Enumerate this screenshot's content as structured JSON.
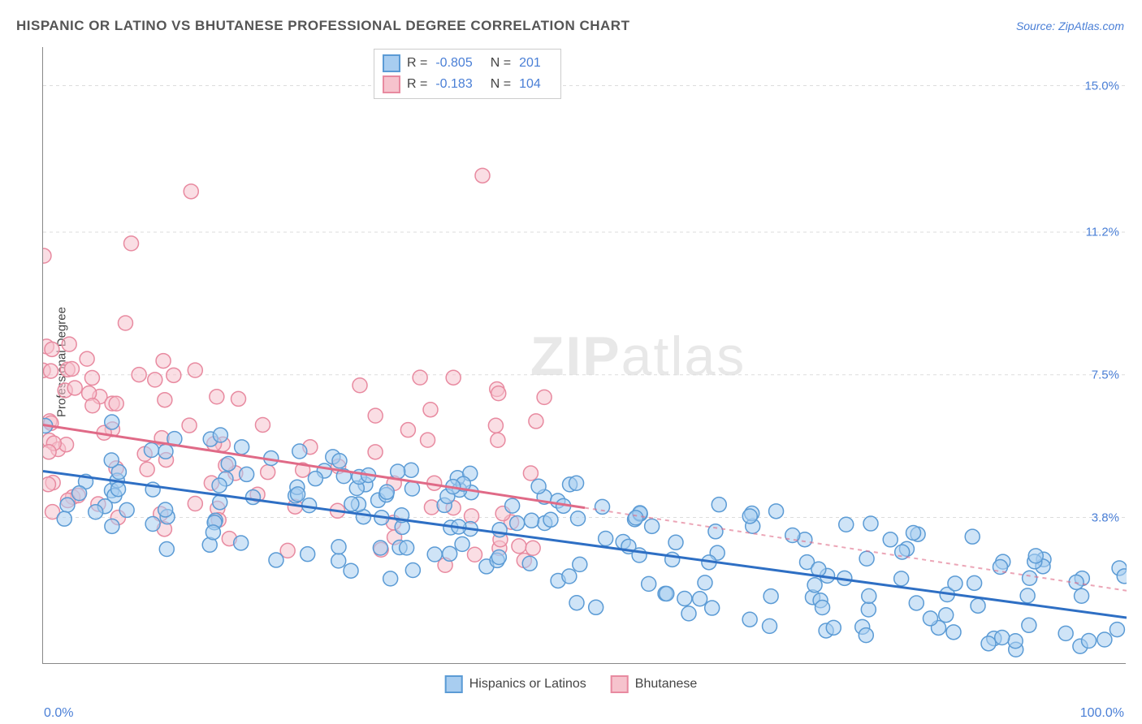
{
  "title": "HISPANIC OR LATINO VS BHUTANESE PROFESSIONAL DEGREE CORRELATION CHART",
  "source": "Source: ZipAtlas.com",
  "watermark_zip": "ZIP",
  "watermark_atlas": "atlas",
  "y_axis_label": "Professional Degree",
  "x_min_label": "0.0%",
  "x_max_label": "100.0%",
  "chart": {
    "type": "scatter",
    "xlim": [
      0,
      100
    ],
    "ylim": [
      0,
      16
    ],
    "y_ticks": [
      3.8,
      7.5,
      11.2,
      15.0
    ],
    "y_tick_labels": [
      "3.8%",
      "7.5%",
      "11.2%",
      "15.0%"
    ],
    "x_ticks": [
      0,
      11.1,
      22.2,
      33.3,
      44.4,
      55.5,
      66.6,
      77.7,
      88.8,
      100
    ],
    "background_color": "#ffffff",
    "grid_color": "#dddddd",
    "point_radius": 9,
    "point_opacity": 0.55,
    "series": [
      {
        "name": "Hispanics or Latinos",
        "fill_color": "#a8cdf0",
        "stroke_color": "#5b9bd5",
        "line_color": "#2e6fc4",
        "trend_start_y": 5.0,
        "trend_end_y": 1.2,
        "trend_dash_start_x": 100,
        "R": "-0.805",
        "N": "201"
      },
      {
        "name": "Bhutanese",
        "fill_color": "#f6c3cd",
        "stroke_color": "#e88aa0",
        "line_color": "#e06a87",
        "trend_start_y": 6.2,
        "trend_end_y": 1.9,
        "trend_dash_start_x": 50,
        "R": "-0.183",
        "N": "104"
      }
    ],
    "legend_label_R": "R =",
    "legend_label_N": "N ="
  }
}
